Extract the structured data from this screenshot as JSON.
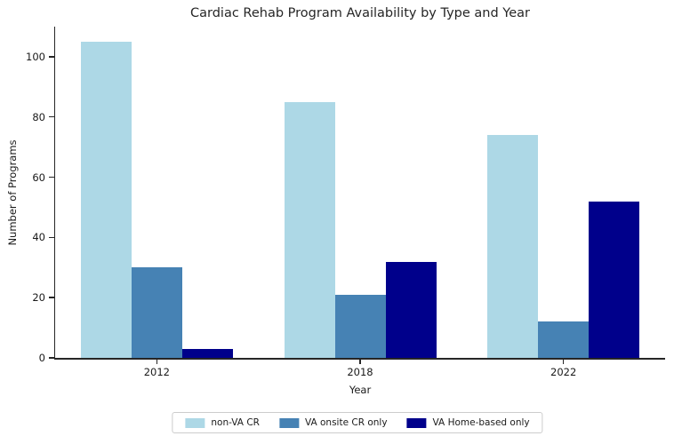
{
  "chart_data": {
    "type": "bar",
    "title": "Cardiac Rehab Program Availability by Type and Year",
    "xlabel": "Year",
    "ylabel": "Number of Programs",
    "categories": [
      "2012",
      "2018",
      "2022"
    ],
    "series": [
      {
        "name": "non-VA CR",
        "color": "#ADD8E6",
        "values": [
          105,
          85,
          74
        ]
      },
      {
        "name": "VA onsite CR only",
        "color": "#4682B4",
        "values": [
          30,
          21,
          12
        ]
      },
      {
        "name": "VA Home-based only",
        "color": "#00008B",
        "values": [
          3,
          32,
          52
        ]
      }
    ],
    "ylim": [
      0,
      110
    ],
    "yticks": [
      0,
      20,
      40,
      60,
      80,
      100
    ],
    "grid": false,
    "legend_position": "bottom-center",
    "axis_color": "#262626",
    "background_color": "#ffffff"
  }
}
